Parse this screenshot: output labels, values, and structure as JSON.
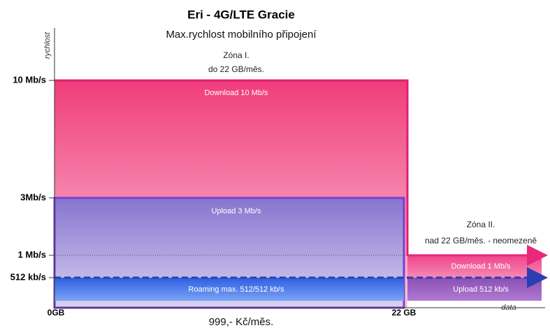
{
  "title": "Eri - 4G/LTE Gracie",
  "subtitle": "Max.rychlost mobilního připojení",
  "y_axis_label": "rychlost",
  "x_axis_label": "data",
  "y_labels": [
    "10 Mb/s",
    "3Mb/s",
    "1 Mb/s",
    "512 kb/s"
  ],
  "x_labels": [
    "0GB",
    "22 GB"
  ],
  "zone1": {
    "title": "Zóna I.",
    "subtitle": "do 22 GB/měs.",
    "download": "Download 10 Mb/s",
    "upload": "Upload 3 Mb/s",
    "roaming": "Roaming max. 512/512 kb/s"
  },
  "zone2": {
    "title": "Zóna II.",
    "subtitle": "nad 22 GB/měs. - neomezeně",
    "download": "Download 1 Mb/s",
    "upload": "Upload 512 kb/s"
  },
  "price": "999,- Kč/měs."
}
